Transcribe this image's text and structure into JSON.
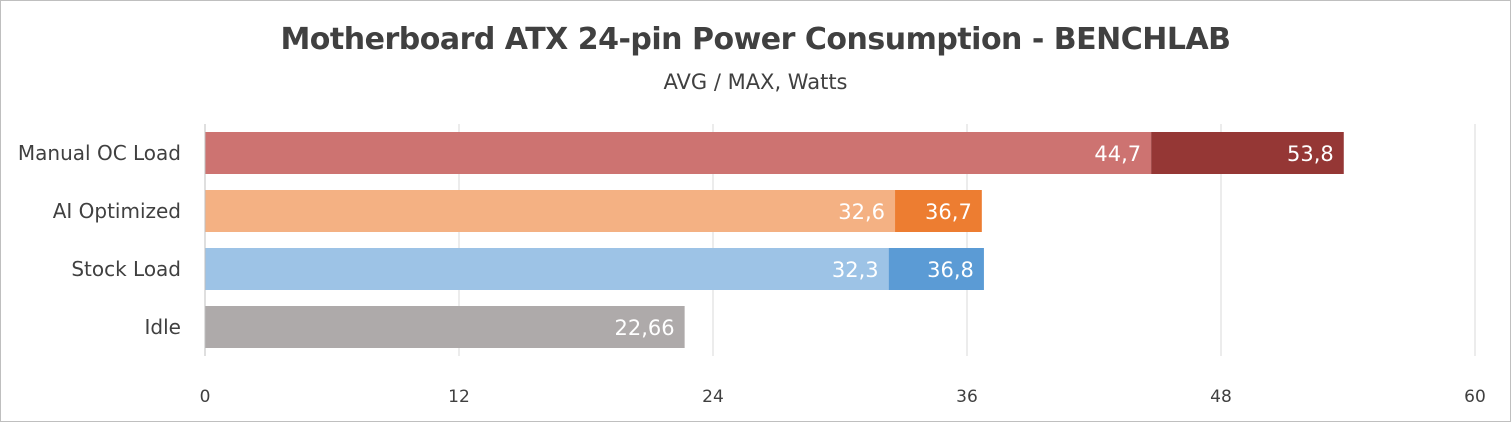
{
  "chart_data": {
    "type": "bar",
    "orientation": "horizontal",
    "title": "Motherboard ATX 24-pin Power Consumption - BENCHLAB",
    "subtitle": "AVG / MAX, Watts",
    "categories": [
      "Manual OC Load",
      "AI Optimized",
      "Stock Load",
      "Idle"
    ],
    "bars": [
      {
        "category": "Manual OC Load",
        "avg": 44.7,
        "avg_label": "44,7",
        "max": 53.8,
        "max_label": "53,8",
        "avg_color": "#cd7371",
        "max_color": "#953735"
      },
      {
        "category": "AI Optimized",
        "avg": 32.6,
        "avg_label": "32,6",
        "max": 36.7,
        "max_label": "36,7",
        "avg_color": "#f4b183",
        "max_color": "#ed7d31"
      },
      {
        "category": "Stock Load",
        "avg": 32.3,
        "avg_label": "32,3",
        "max": 36.8,
        "max_label": "36,8",
        "avg_color": "#9dc3e6",
        "max_color": "#5b9bd5"
      },
      {
        "category": "Idle",
        "avg": 22.66,
        "avg_label": "22,66",
        "max": null,
        "max_label": "",
        "avg_color": "#aeaaaa",
        "max_color": null
      }
    ],
    "xlim": [
      0,
      60
    ],
    "xticks": [
      "0",
      "12",
      "24",
      "36",
      "48",
      "60"
    ],
    "grid": true,
    "legend": "none"
  }
}
